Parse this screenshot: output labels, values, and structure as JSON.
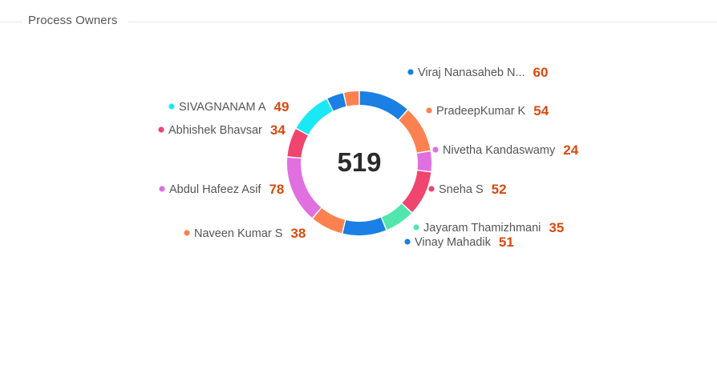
{
  "header": {
    "title": "Process Owners"
  },
  "chart_data": {
    "type": "pie",
    "total": "519",
    "slices": [
      {
        "name": "Viraj Nanasaheb N...",
        "value": 60,
        "color": "#1b7fe3"
      },
      {
        "name": "PradeepKumar K",
        "value": 54,
        "color": "#fb8250"
      },
      {
        "name": "Nivetha Kandaswamy",
        "value": 24,
        "color": "#e070e0"
      },
      {
        "name": "Sneha S",
        "value": 52,
        "color": "#f0456e"
      },
      {
        "name": "Jayaram Thamizhmani",
        "value": 35,
        "color": "#52e6ae"
      },
      {
        "name": "Vinay Mahadik",
        "value": 51,
        "color": "#1b7fe3"
      },
      {
        "name": "Naveen Kumar S",
        "value": 38,
        "color": "#fb8250"
      },
      {
        "name": "Abdul Hafeez Asif",
        "value": 78,
        "color": "#e070e0"
      },
      {
        "name": "Abhishek Bhavsar",
        "value": 34,
        "color": "#f0456e"
      },
      {
        "name": "SIVAGNANAM A",
        "value": 49,
        "color": "#1ce8f5"
      },
      {
        "name": "",
        "value": 20,
        "color": "#1b7fe3"
      },
      {
        "name": "",
        "value": 18,
        "color": "#fb8250"
      }
    ]
  }
}
